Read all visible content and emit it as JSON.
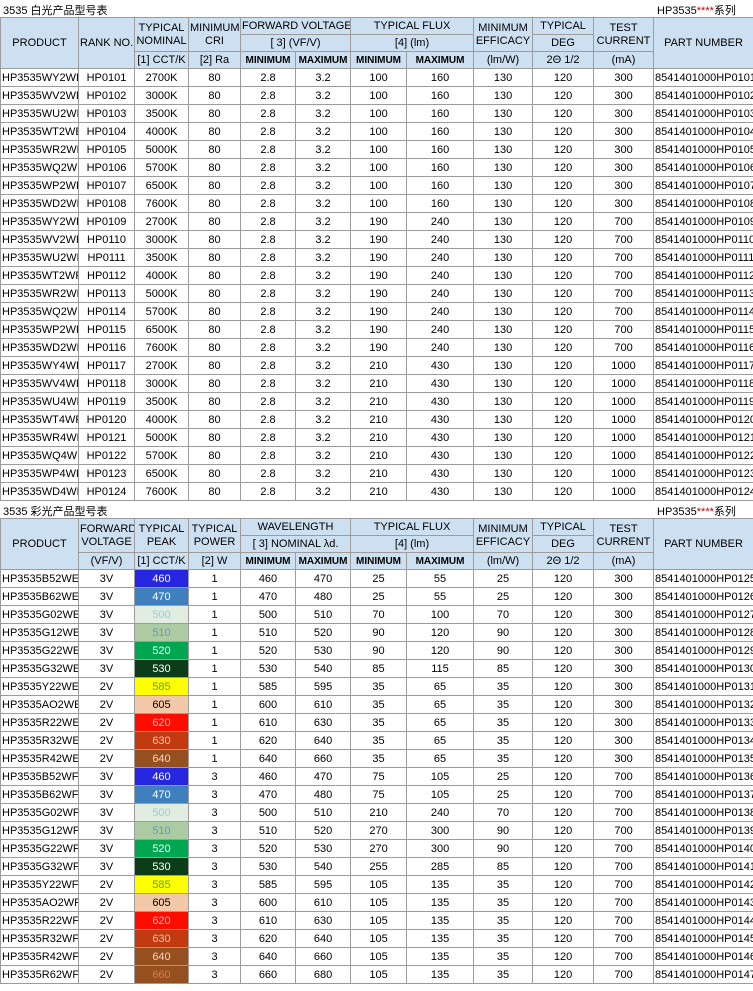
{
  "page": {
    "table1_title": "3535 白光产品型号表",
    "table2_title": "3535 彩光产品型号表",
    "series": {
      "prefix": "HP3535",
      "stars": "****",
      "suffix": "系列"
    }
  },
  "colors": {
    "header_bg": "#cde0f1",
    "grid": "#9c9c9c",
    "series_stars": "#c00000"
  },
  "table1": {
    "header": {
      "product": "PRODUCT",
      "rank": "RANK NO.",
      "typical_nominal_l1": "TYPICAL",
      "typical_nominal_l2": "NOMINAL",
      "cct_unit": "[1] CCT/K",
      "minimum_cri_l1": "MINIMUM",
      "minimum_cri_l2": "CRI",
      "cri_unit": "[2] Ra",
      "forward_voltage": "FORWARD VOLTAGE",
      "forward_voltage_unit": "[ 3] (VF/V)",
      "typical_flux": "TYPICAL FLUX",
      "flux_unit": "[4] (lm)",
      "minimum": "MINIMUM",
      "maximum": "MAXIMUM",
      "efficacy_l1": "MINIMUM",
      "efficacy_l2": "EFFICACY",
      "efficacy_unit": "(lm/W)",
      "deg_l1": "TYPICAL",
      "deg_l2": "DEG",
      "deg_unit": "2Θ 1/2",
      "current_l1": "TEST",
      "current_l2": "CURRENT",
      "current_unit": "(mA)",
      "part": "PART NUMBER"
    },
    "rows": [
      {
        "product": "HP3535WY2WE",
        "rank": "HP0101",
        "cct": "2700K",
        "cri": "80",
        "vf_min": "2.8",
        "vf_max": "3.2",
        "flux_min": "100",
        "flux_max": "160",
        "eff": "130",
        "deg": "120",
        "ma": "300",
        "part": "8541401000HP0101"
      },
      {
        "product": "HP3535WV2WE",
        "rank": "HP0102",
        "cct": "3000K",
        "cri": "80",
        "vf_min": "2.8",
        "vf_max": "3.2",
        "flux_min": "100",
        "flux_max": "160",
        "eff": "130",
        "deg": "120",
        "ma": "300",
        "part": "8541401000HP0102"
      },
      {
        "product": "HP3535WU2WE",
        "rank": "HP0103",
        "cct": "3500K",
        "cri": "80",
        "vf_min": "2.8",
        "vf_max": "3.2",
        "flux_min": "100",
        "flux_max": "160",
        "eff": "130",
        "deg": "120",
        "ma": "300",
        "part": "8541401000HP0103"
      },
      {
        "product": "HP3535WT2WE",
        "rank": "HP0104",
        "cct": "4000K",
        "cri": "80",
        "vf_min": "2.8",
        "vf_max": "3.2",
        "flux_min": "100",
        "flux_max": "160",
        "eff": "130",
        "deg": "120",
        "ma": "300",
        "part": "8541401000HP0104"
      },
      {
        "product": "HP3535WR2WE",
        "rank": "HP0105",
        "cct": "5000K",
        "cri": "80",
        "vf_min": "2.8",
        "vf_max": "3.2",
        "flux_min": "100",
        "flux_max": "160",
        "eff": "130",
        "deg": "120",
        "ma": "300",
        "part": "8541401000HP0105"
      },
      {
        "product": "HP3535WQ2WE",
        "rank": "HP0106",
        "cct": "5700K",
        "cri": "80",
        "vf_min": "2.8",
        "vf_max": "3.2",
        "flux_min": "100",
        "flux_max": "160",
        "eff": "130",
        "deg": "120",
        "ma": "300",
        "part": "8541401000HP0106"
      },
      {
        "product": "HP3535WP2WE",
        "rank": "HP0107",
        "cct": "6500K",
        "cri": "80",
        "vf_min": "2.8",
        "vf_max": "3.2",
        "flux_min": "100",
        "flux_max": "160",
        "eff": "130",
        "deg": "120",
        "ma": "300",
        "part": "8541401000HP0107"
      },
      {
        "product": "HP3535WD2WE",
        "rank": "HP0108",
        "cct": "7600K",
        "cri": "80",
        "vf_min": "2.8",
        "vf_max": "3.2",
        "flux_min": "100",
        "flux_max": "160",
        "eff": "130",
        "deg": "120",
        "ma": "300",
        "part": "8541401000HP0108"
      },
      {
        "product": "HP3535WY2WF",
        "rank": "HP0109",
        "cct": "2700K",
        "cri": "80",
        "vf_min": "2.8",
        "vf_max": "3.2",
        "flux_min": "190",
        "flux_max": "240",
        "eff": "130",
        "deg": "120",
        "ma": "700",
        "part": "8541401000HP0109"
      },
      {
        "product": "HP3535WV2WF",
        "rank": "HP0110",
        "cct": "3000K",
        "cri": "80",
        "vf_min": "2.8",
        "vf_max": "3.2",
        "flux_min": "190",
        "flux_max": "240",
        "eff": "130",
        "deg": "120",
        "ma": "700",
        "part": "8541401000HP0110"
      },
      {
        "product": "HP3535WU2WF",
        "rank": "HP0111",
        "cct": "3500K",
        "cri": "80",
        "vf_min": "2.8",
        "vf_max": "3.2",
        "flux_min": "190",
        "flux_max": "240",
        "eff": "130",
        "deg": "120",
        "ma": "700",
        "part": "8541401000HP0111"
      },
      {
        "product": "HP3535WT2WF",
        "rank": "HP0112",
        "cct": "4000K",
        "cri": "80",
        "vf_min": "2.8",
        "vf_max": "3.2",
        "flux_min": "190",
        "flux_max": "240",
        "eff": "130",
        "deg": "120",
        "ma": "700",
        "part": "8541401000HP0112"
      },
      {
        "product": "HP3535WR2WF",
        "rank": "HP0113",
        "cct": "5000K",
        "cri": "80",
        "vf_min": "2.8",
        "vf_max": "3.2",
        "flux_min": "190",
        "flux_max": "240",
        "eff": "130",
        "deg": "120",
        "ma": "700",
        "part": "8541401000HP0113"
      },
      {
        "product": "HP3535WQ2WF",
        "rank": "HP0114",
        "cct": "5700K",
        "cri": "80",
        "vf_min": "2.8",
        "vf_max": "3.2",
        "flux_min": "190",
        "flux_max": "240",
        "eff": "130",
        "deg": "120",
        "ma": "700",
        "part": "8541401000HP0114"
      },
      {
        "product": "HP3535WP2WF",
        "rank": "HP0115",
        "cct": "6500K",
        "cri": "80",
        "vf_min": "2.8",
        "vf_max": "3.2",
        "flux_min": "190",
        "flux_max": "240",
        "eff": "130",
        "deg": "120",
        "ma": "700",
        "part": "8541401000HP0115"
      },
      {
        "product": "HP3535WD2WF",
        "rank": "HP0116",
        "cct": "7600K",
        "cri": "80",
        "vf_min": "2.8",
        "vf_max": "3.2",
        "flux_min": "190",
        "flux_max": "240",
        "eff": "130",
        "deg": "120",
        "ma": "700",
        "part": "8541401000HP0116"
      },
      {
        "product": "HP3535WY4WF",
        "rank": "HP0117",
        "cct": "2700K",
        "cri": "80",
        "vf_min": "2.8",
        "vf_max": "3.2",
        "flux_min": "210",
        "flux_max": "430",
        "eff": "130",
        "deg": "120",
        "ma": "1000",
        "part": "8541401000HP0117"
      },
      {
        "product": "HP3535WV4WF",
        "rank": "HP0118",
        "cct": "3000K",
        "cri": "80",
        "vf_min": "2.8",
        "vf_max": "3.2",
        "flux_min": "210",
        "flux_max": "430",
        "eff": "130",
        "deg": "120",
        "ma": "1000",
        "part": "8541401000HP0118"
      },
      {
        "product": "HP3535WU4WF",
        "rank": "HP0119",
        "cct": "3500K",
        "cri": "80",
        "vf_min": "2.8",
        "vf_max": "3.2",
        "flux_min": "210",
        "flux_max": "430",
        "eff": "130",
        "deg": "120",
        "ma": "1000",
        "part": "8541401000HP0119"
      },
      {
        "product": "HP3535WT4WF",
        "rank": "HP0120",
        "cct": "4000K",
        "cri": "80",
        "vf_min": "2.8",
        "vf_max": "3.2",
        "flux_min": "210",
        "flux_max": "430",
        "eff": "130",
        "deg": "120",
        "ma": "1000",
        "part": "8541401000HP0120"
      },
      {
        "product": "HP3535WR4WF",
        "rank": "HP0121",
        "cct": "5000K",
        "cri": "80",
        "vf_min": "2.8",
        "vf_max": "3.2",
        "flux_min": "210",
        "flux_max": "430",
        "eff": "130",
        "deg": "120",
        "ma": "1000",
        "part": "8541401000HP0121"
      },
      {
        "product": "HP3535WQ4WF",
        "rank": "HP0122",
        "cct": "5700K",
        "cri": "80",
        "vf_min": "2.8",
        "vf_max": "3.2",
        "flux_min": "210",
        "flux_max": "430",
        "eff": "130",
        "deg": "120",
        "ma": "1000",
        "part": "8541401000HP0122"
      },
      {
        "product": "HP3535WP4WF",
        "rank": "HP0123",
        "cct": "6500K",
        "cri": "80",
        "vf_min": "2.8",
        "vf_max": "3.2",
        "flux_min": "210",
        "flux_max": "430",
        "eff": "130",
        "deg": "120",
        "ma": "1000",
        "part": "8541401000HP0123"
      },
      {
        "product": "HP3535WD4WF",
        "rank": "HP0124",
        "cct": "7600K",
        "cri": "80",
        "vf_min": "2.8",
        "vf_max": "3.2",
        "flux_min": "210",
        "flux_max": "430",
        "eff": "130",
        "deg": "120",
        "ma": "1000",
        "part": "8541401000HP0124"
      }
    ]
  },
  "table2": {
    "header": {
      "product": "PRODUCT",
      "forward_voltage_l1": "FORWARD",
      "forward_voltage_l2": "VOLTAGE",
      "forward_voltage_unit": "(VF/V)",
      "typical_peak_l1": "TYPICAL",
      "typical_peak_l2": "PEAK",
      "cct_unit": "[1] CCT/K",
      "typical_power_l1": "TYPICAL",
      "typical_power_l2": "POWER",
      "power_unit": "[2] W",
      "wavelength": "WAVELENGTH",
      "wavelength_unit": "[ 3] NOMINAL λd.",
      "typical_flux": "TYPICAL FLUX",
      "flux_unit": "[4] (lm)",
      "minimum": "MINIMUM",
      "maximum": "MAXIMUM",
      "efficacy_l1": "MINIMUM",
      "efficacy_l2": "EFFICACY",
      "efficacy_unit": "(lm/W)",
      "deg_l1": "TYPICAL",
      "deg_l2": "DEG",
      "deg_unit": "2Θ 1/2",
      "current_l1": "TEST",
      "current_l2": "CURRENT",
      "current_unit": "(mA)",
      "part": "PART NUMBER"
    },
    "rows": [
      {
        "product": "HP3535B52WE",
        "vf": "3V",
        "peak": "460",
        "swatch": "blue460",
        "power": "1",
        "wl_min": "460",
        "wl_max": "470",
        "flux_min": "25",
        "flux_max": "55",
        "eff": "25",
        "deg": "120",
        "ma": "300",
        "part": "8541401000HP0125"
      },
      {
        "product": "HP3535B62WE",
        "vf": "3V",
        "peak": "470",
        "swatch": "blue470",
        "power": "1",
        "wl_min": "470",
        "wl_max": "480",
        "flux_min": "25",
        "flux_max": "55",
        "eff": "25",
        "deg": "120",
        "ma": "300",
        "part": "8541401000HP0126"
      },
      {
        "product": "HP3535G02WE",
        "vf": "3V",
        "peak": "500",
        "swatch": "green500",
        "power": "1",
        "wl_min": "500",
        "wl_max": "510",
        "flux_min": "70",
        "flux_max": "100",
        "eff": "70",
        "deg": "120",
        "ma": "300",
        "part": "8541401000HP0127"
      },
      {
        "product": "HP3535G12WE",
        "vf": "3V",
        "peak": "510",
        "swatch": "green510",
        "power": "1",
        "wl_min": "510",
        "wl_max": "520",
        "flux_min": "90",
        "flux_max": "120",
        "eff": "90",
        "deg": "120",
        "ma": "300",
        "part": "8541401000HP0128"
      },
      {
        "product": "HP3535G22WE",
        "vf": "3V",
        "peak": "520",
        "swatch": "green520",
        "power": "1",
        "wl_min": "520",
        "wl_max": "530",
        "flux_min": "90",
        "flux_max": "120",
        "eff": "90",
        "deg": "120",
        "ma": "300",
        "part": "8541401000HP0129"
      },
      {
        "product": "HP3535G32WE",
        "vf": "3V",
        "peak": "530",
        "swatch": "green530",
        "power": "1",
        "wl_min": "530",
        "wl_max": "540",
        "flux_min": "85",
        "flux_max": "115",
        "eff": "85",
        "deg": "120",
        "ma": "300",
        "part": "8541401000HP0130"
      },
      {
        "product": "HP3535Y22WE",
        "vf": "2V",
        "peak": "585",
        "swatch": "yellow585",
        "power": "1",
        "wl_min": "585",
        "wl_max": "595",
        "flux_min": "35",
        "flux_max": "65",
        "eff": "35",
        "deg": "120",
        "ma": "300",
        "part": "8541401000HP0131"
      },
      {
        "product": "HP3535AO2WE",
        "vf": "2V",
        "peak": "605",
        "swatch": "orange605",
        "power": "1",
        "wl_min": "600",
        "wl_max": "610",
        "flux_min": "35",
        "flux_max": "65",
        "eff": "35",
        "deg": "120",
        "ma": "300",
        "part": "8541401000HP0132"
      },
      {
        "product": "HP3535R22WE",
        "vf": "2V",
        "peak": "620",
        "swatch": "red620",
        "power": "1",
        "wl_min": "610",
        "wl_max": "630",
        "flux_min": "35",
        "flux_max": "65",
        "eff": "35",
        "deg": "120",
        "ma": "300",
        "part": "8541401000HP0133"
      },
      {
        "product": "HP3535R32WE",
        "vf": "2V",
        "peak": "630",
        "swatch": "red630",
        "power": "1",
        "wl_min": "620",
        "wl_max": "640",
        "flux_min": "35",
        "flux_max": "65",
        "eff": "35",
        "deg": "120",
        "ma": "300",
        "part": "8541401000HP0134"
      },
      {
        "product": "HP3535R42WE",
        "vf": "2V",
        "peak": "640",
        "swatch": "brown640",
        "power": "1",
        "wl_min": "640",
        "wl_max": "660",
        "flux_min": "35",
        "flux_max": "65",
        "eff": "35",
        "deg": "120",
        "ma": "300",
        "part": "8541401000HP0135"
      },
      {
        "product": "HP3535B52WF",
        "vf": "3V",
        "peak": "460",
        "swatch": "blue460",
        "power": "3",
        "wl_min": "460",
        "wl_max": "470",
        "flux_min": "75",
        "flux_max": "105",
        "eff": "25",
        "deg": "120",
        "ma": "700",
        "part": "8541401000HP0136"
      },
      {
        "product": "HP3535B62WF",
        "vf": "3V",
        "peak": "470",
        "swatch": "blue470",
        "power": "3",
        "wl_min": "470",
        "wl_max": "480",
        "flux_min": "75",
        "flux_max": "105",
        "eff": "25",
        "deg": "120",
        "ma": "700",
        "part": "8541401000HP0137"
      },
      {
        "product": "HP3535G02WF",
        "vf": "3V",
        "peak": "500",
        "swatch": "green500",
        "power": "3",
        "wl_min": "500",
        "wl_max": "510",
        "flux_min": "210",
        "flux_max": "240",
        "eff": "70",
        "deg": "120",
        "ma": "700",
        "part": "8541401000HP0138"
      },
      {
        "product": "HP3535G12WF",
        "vf": "3V",
        "peak": "510",
        "swatch": "green510",
        "power": "3",
        "wl_min": "510",
        "wl_max": "520",
        "flux_min": "270",
        "flux_max": "300",
        "eff": "90",
        "deg": "120",
        "ma": "700",
        "part": "8541401000HP0139"
      },
      {
        "product": "HP3535G22WF",
        "vf": "3V",
        "peak": "520",
        "swatch": "green520",
        "power": "3",
        "wl_min": "520",
        "wl_max": "530",
        "flux_min": "270",
        "flux_max": "300",
        "eff": "90",
        "deg": "120",
        "ma": "700",
        "part": "8541401000HP0140"
      },
      {
        "product": "HP3535G32WF",
        "vf": "3V",
        "peak": "530",
        "swatch": "green530",
        "power": "3",
        "wl_min": "530",
        "wl_max": "540",
        "flux_min": "255",
        "flux_max": "285",
        "eff": "85",
        "deg": "120",
        "ma": "700",
        "part": "8541401000HP0141"
      },
      {
        "product": "HP3535Y22WF",
        "vf": "2V",
        "peak": "585",
        "swatch": "yellow585",
        "power": "3",
        "wl_min": "585",
        "wl_max": "595",
        "flux_min": "105",
        "flux_max": "135",
        "eff": "35",
        "deg": "120",
        "ma": "700",
        "part": "8541401000HP0142"
      },
      {
        "product": "HP3535AO2WF",
        "vf": "2V",
        "peak": "605",
        "swatch": "orange605",
        "power": "3",
        "wl_min": "600",
        "wl_max": "610",
        "flux_min": "105",
        "flux_max": "135",
        "eff": "35",
        "deg": "120",
        "ma": "700",
        "part": "8541401000HP0143"
      },
      {
        "product": "HP3535R22WF",
        "vf": "2V",
        "peak": "620",
        "swatch": "red620",
        "power": "3",
        "wl_min": "610",
        "wl_max": "630",
        "flux_min": "105",
        "flux_max": "135",
        "eff": "35",
        "deg": "120",
        "ma": "700",
        "part": "8541401000HP0144"
      },
      {
        "product": "HP3535R32WF",
        "vf": "2V",
        "peak": "630",
        "swatch": "red630",
        "power": "3",
        "wl_min": "620",
        "wl_max": "640",
        "flux_min": "105",
        "flux_max": "135",
        "eff": "35",
        "deg": "120",
        "ma": "700",
        "part": "8541401000HP0145"
      },
      {
        "product": "HP3535R42WF",
        "vf": "2V",
        "peak": "640",
        "swatch": "brown640",
        "power": "3",
        "wl_min": "640",
        "wl_max": "660",
        "flux_min": "105",
        "flux_max": "135",
        "eff": "35",
        "deg": "120",
        "ma": "700",
        "part": "8541401000HP0146"
      },
      {
        "product": "HP3535R62WF",
        "vf": "2V",
        "peak": "660",
        "swatch": "brown660",
        "power": "3",
        "wl_min": "660",
        "wl_max": "680",
        "flux_min": "105",
        "flux_max": "135",
        "eff": "35",
        "deg": "120",
        "ma": "700",
        "part": "8541401000HP0147"
      }
    ]
  },
  "swatches": {
    "blue460": {
      "bg": "#2626e0",
      "fg": "#ffffff"
    },
    "blue470": {
      "bg": "#3f7fbe",
      "fg": "#ffffff"
    },
    "green500": {
      "bg": "#e1ede1",
      "fg": "#8ccff0"
    },
    "green510": {
      "bg": "#accba3",
      "fg": "#4e9fe0"
    },
    "green520": {
      "bg": "#00a650",
      "fg": "#ffffff"
    },
    "green530": {
      "bg": "#0c3d18",
      "fg": "#ffffff"
    },
    "yellow585": {
      "bg": "#ffff00",
      "fg": "#4ca64c"
    },
    "orange605": {
      "bg": "#f4c9a9",
      "fg": "#000000"
    },
    "red620": {
      "bg": "#fc0d00",
      "fg": "#ffb9b9"
    },
    "red630": {
      "bg": "#c13a10",
      "fg": "#ffc5b0"
    },
    "brown640": {
      "bg": "#964f1e",
      "fg": "#ffd0c0"
    },
    "brown660": {
      "bg": "#964f1e",
      "fg": "#e8744e"
    }
  }
}
